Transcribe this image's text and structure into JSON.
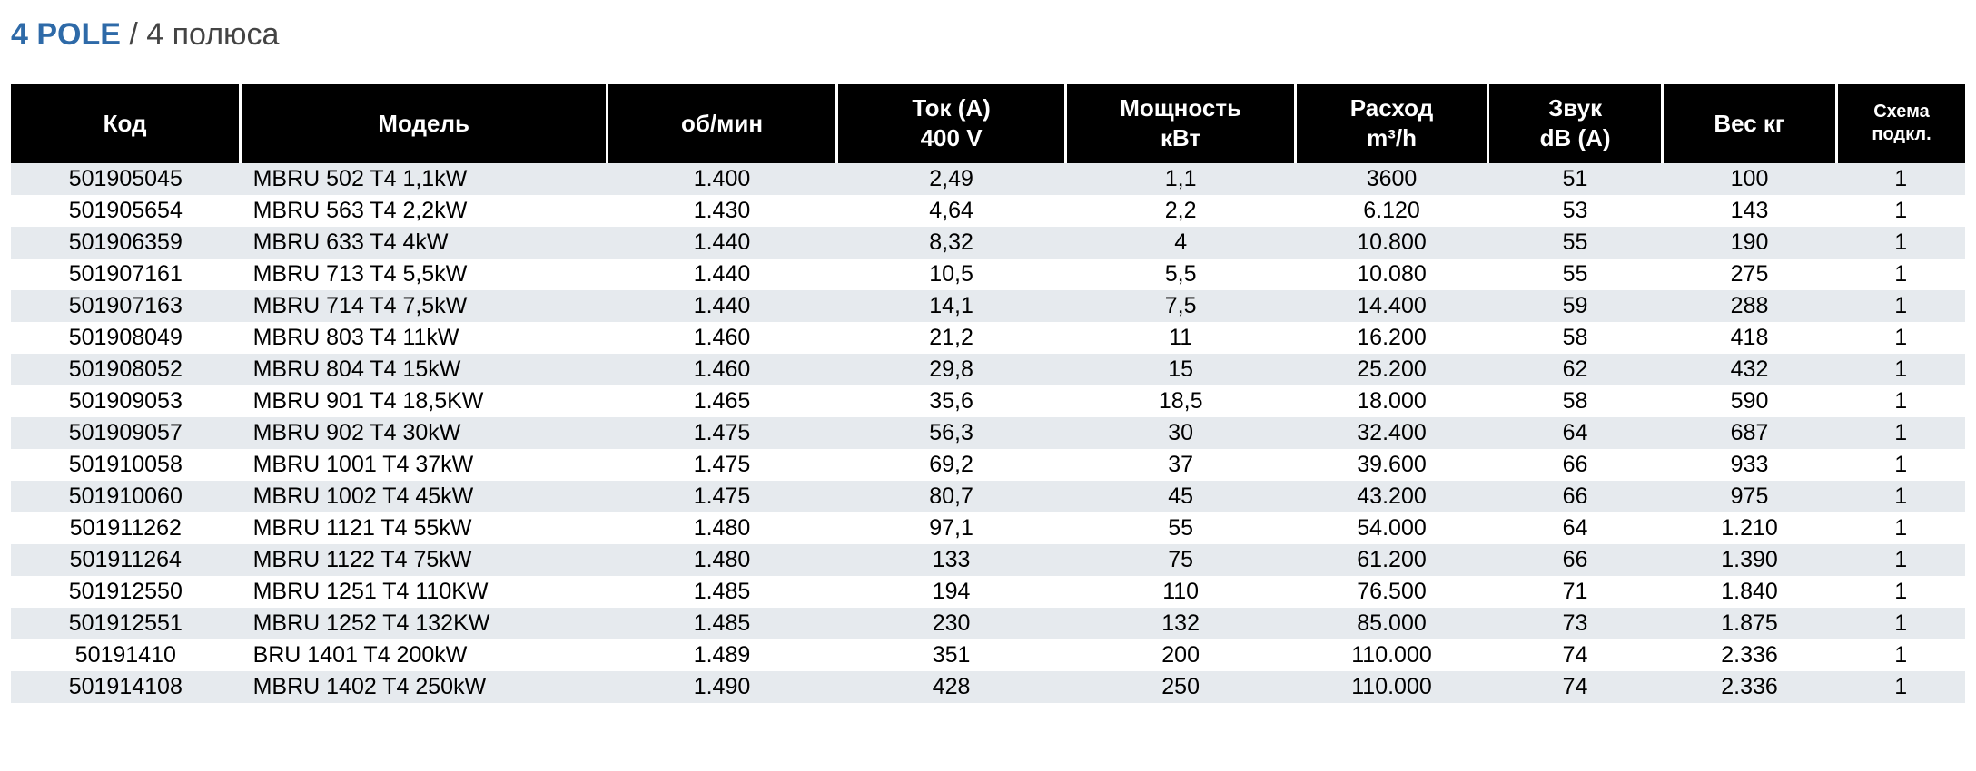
{
  "title": {
    "main": "4 POLE",
    "sep": " / ",
    "sub": "4 полюса"
  },
  "header": {
    "code": "Код",
    "model": "Модель",
    "rpm": "об/мин",
    "amp_l1": "Ток  (A)",
    "amp_l2": "400 V",
    "kw_l1": "Мощность",
    "kw_l2": "кВт",
    "flow_l1": "Расход",
    "flow_l2": "m³/h",
    "db_l1": "Звук",
    "db_l2": "dB (A)",
    "weight": "Вес кг",
    "scheme_l1": "Схема",
    "scheme_l2": "подкл."
  },
  "rows": [
    {
      "code": "501905045",
      "model": "MBRU 502 T4 1,1kW",
      "rpm": "1.400",
      "amp": "2,49",
      "kw": "1,1",
      "flow": "3600",
      "db": "51",
      "weight": "100",
      "scheme": "1"
    },
    {
      "code": "501905654",
      "model": "MBRU 563 T4 2,2kW",
      "rpm": "1.430",
      "amp": "4,64",
      "kw": "2,2",
      "flow": "6.120",
      "db": "53",
      "weight": "143",
      "scheme": "1"
    },
    {
      "code": "501906359",
      "model": "MBRU 633 T4 4kW",
      "rpm": "1.440",
      "amp": "8,32",
      "kw": "4",
      "flow": "10.800",
      "db": "55",
      "weight": "190",
      "scheme": "1"
    },
    {
      "code": "501907161",
      "model": "MBRU 713 T4 5,5kW",
      "rpm": "1.440",
      "amp": "10,5",
      "kw": "5,5",
      "flow": "10.080",
      "db": "55",
      "weight": "275",
      "scheme": "1"
    },
    {
      "code": "501907163",
      "model": "MBRU 714 T4 7,5kW",
      "rpm": "1.440",
      "amp": "14,1",
      "kw": "7,5",
      "flow": "14.400",
      "db": "59",
      "weight": "288",
      "scheme": "1"
    },
    {
      "code": "501908049",
      "model": "MBRU 803 T4 11kW",
      "rpm": "1.460",
      "amp": "21,2",
      "kw": "11",
      "flow": "16.200",
      "db": "58",
      "weight": "418",
      "scheme": "1"
    },
    {
      "code": "501908052",
      "model": "MBRU 804 T4 15kW",
      "rpm": "1.460",
      "amp": "29,8",
      "kw": "15",
      "flow": "25.200",
      "db": "62",
      "weight": "432",
      "scheme": "1"
    },
    {
      "code": "501909053",
      "model": "MBRU 901 T4 18,5KW",
      "rpm": "1.465",
      "amp": "35,6",
      "kw": "18,5",
      "flow": "18.000",
      "db": "58",
      "weight": "590",
      "scheme": "1"
    },
    {
      "code": "501909057",
      "model": "MBRU 902 T4 30kW",
      "rpm": "1.475",
      "amp": "56,3",
      "kw": "30",
      "flow": "32.400",
      "db": "64",
      "weight": "687",
      "scheme": "1"
    },
    {
      "code": "501910058",
      "model": "MBRU 1001 T4 37kW",
      "rpm": "1.475",
      "amp": "69,2",
      "kw": "37",
      "flow": "39.600",
      "db": "66",
      "weight": "933",
      "scheme": "1"
    },
    {
      "code": "501910060",
      "model": "MBRU 1002 T4 45kW",
      "rpm": "1.475",
      "amp": "80,7",
      "kw": "45",
      "flow": "43.200",
      "db": "66",
      "weight": "975",
      "scheme": "1"
    },
    {
      "code": "501911262",
      "model": "MBRU 1121 T4 55kW",
      "rpm": "1.480",
      "amp": "97,1",
      "kw": "55",
      "flow": "54.000",
      "db": "64",
      "weight": "1.210",
      "scheme": "1"
    },
    {
      "code": "501911264",
      "model": "MBRU 1122 T4 75kW",
      "rpm": "1.480",
      "amp": "133",
      "kw": "75",
      "flow": "61.200",
      "db": "66",
      "weight": "1.390",
      "scheme": "1"
    },
    {
      "code": "501912550",
      "model": "MBRU 1251 T4 110KW",
      "rpm": "1.485",
      "amp": "194",
      "kw": "110",
      "flow": "76.500",
      "db": "71",
      "weight": "1.840",
      "scheme": "1"
    },
    {
      "code": "501912551",
      "model": "MBRU 1252 T4 132KW",
      "rpm": "1.485",
      "amp": "230",
      "kw": "132",
      "flow": "85.000",
      "db": "73",
      "weight": "1.875",
      "scheme": "1"
    },
    {
      "code": "50191410",
      "model": "  BRU 1401 T4 200kW",
      "rpm": "1.489",
      "amp": "351",
      "kw": "200",
      "flow": "110.000",
      "db": "74",
      "weight": "2.336",
      "scheme": "1"
    },
    {
      "code": "501914108",
      "model": "MBRU 1402 T4 250kW",
      "rpm": "1.490",
      "amp": "428",
      "kw": "250",
      "flow": "110.000",
      "db": "74",
      "weight": "2.336",
      "scheme": "1"
    }
  ]
}
